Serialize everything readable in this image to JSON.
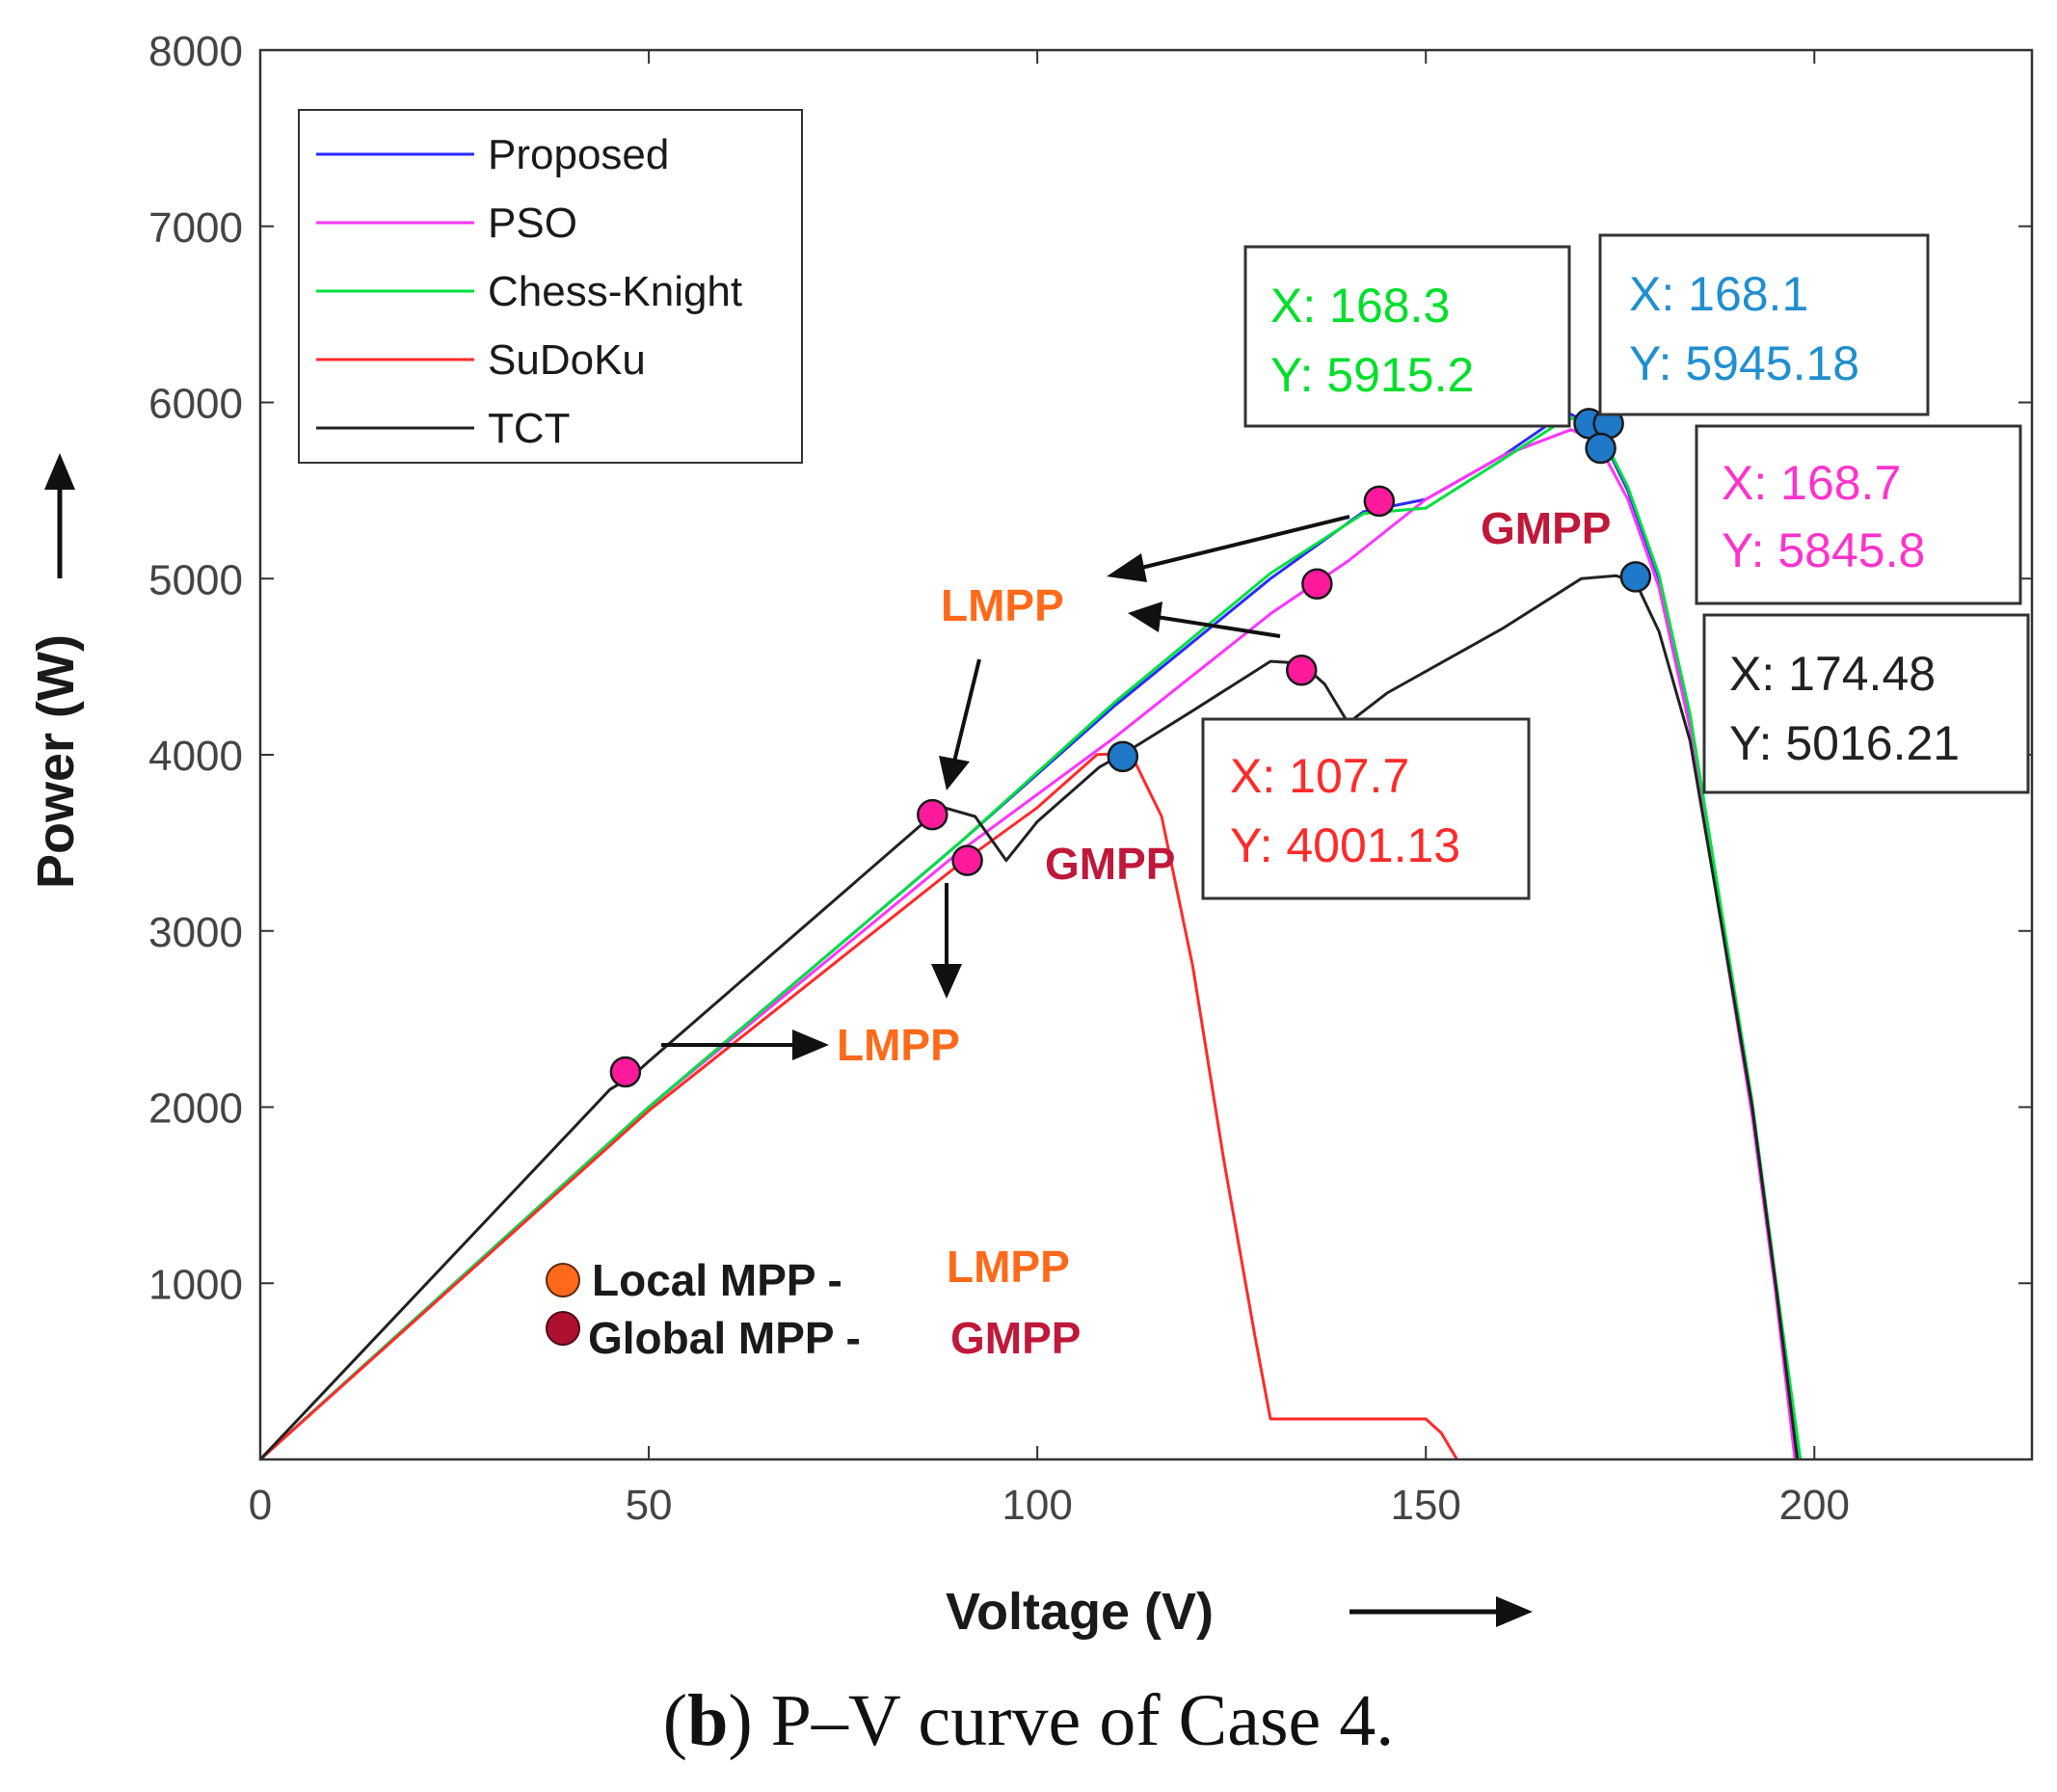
{
  "chart_data": {
    "type": "line",
    "title": "",
    "xlabel": "Voltage (V)",
    "ylabel": "Power (W)",
    "xlim": [
      0,
      228
    ],
    "ylim": [
      0,
      8000
    ],
    "xticks": [
      0,
      50,
      100,
      150,
      200
    ],
    "xtick_labels": [
      "0",
      "50",
      "100",
      "150",
      "200"
    ],
    "yticks": [
      1000,
      2000,
      3000,
      4000,
      5000,
      6000,
      7000,
      8000
    ],
    "ytick_labels": [
      "1000",
      "2000",
      "3000",
      "4000",
      "5000",
      "6000",
      "7000",
      "8000"
    ],
    "legend_position": "top-left",
    "series": [
      {
        "name": "Proposed",
        "color": "#2a2aff",
        "points": [
          [
            0,
            0
          ],
          [
            50,
            2000
          ],
          [
            90,
            3500
          ],
          [
            110,
            4280
          ],
          [
            130,
            5000
          ],
          [
            142,
            5380
          ],
          [
            150,
            5450
          ],
          [
            160,
            5700
          ],
          [
            168.1,
            5945.18
          ],
          [
            172,
            5860
          ],
          [
            176,
            5500
          ],
          [
            180,
            5000
          ],
          [
            184,
            4200
          ],
          [
            188,
            3100
          ],
          [
            192,
            2000
          ],
          [
            195,
            1000
          ],
          [
            198,
            0
          ]
        ]
      },
      {
        "name": "PSO",
        "color": "#ff33ff",
        "points": [
          [
            0,
            0
          ],
          [
            50,
            2000
          ],
          [
            90,
            3450
          ],
          [
            110,
            4100
          ],
          [
            130,
            4800
          ],
          [
            140,
            5100
          ],
          [
            150,
            5450
          ],
          [
            160,
            5700
          ],
          [
            168.7,
            5845.8
          ],
          [
            172,
            5780
          ],
          [
            176,
            5450
          ],
          [
            180,
            4950
          ],
          [
            184,
            4150
          ],
          [
            188,
            3050
          ],
          [
            192,
            1950
          ],
          [
            195,
            950
          ],
          [
            197.5,
            0
          ]
        ]
      },
      {
        "name": "Chess-Knight",
        "color": "#00e040",
        "points": [
          [
            0,
            0
          ],
          [
            50,
            2000
          ],
          [
            90,
            3500
          ],
          [
            110,
            4300
          ],
          [
            130,
            5030
          ],
          [
            142,
            5370
          ],
          [
            150,
            5400
          ],
          [
            160,
            5680
          ],
          [
            168.3,
            5915.2
          ],
          [
            172,
            5870
          ],
          [
            176,
            5520
          ],
          [
            180,
            5020
          ],
          [
            184,
            4230
          ],
          [
            188,
            3130
          ],
          [
            192,
            2030
          ],
          [
            195,
            1030
          ],
          [
            198.2,
            0
          ]
        ]
      },
      {
        "name": "SuDoKu",
        "color": "#ff2a2a",
        "points": [
          [
            0,
            0
          ],
          [
            50,
            1980
          ],
          [
            90,
            3380
          ],
          [
            100,
            3700
          ],
          [
            107.7,
            4001.13
          ],
          [
            112,
            4010
          ],
          [
            116,
            3650
          ],
          [
            120,
            2800
          ],
          [
            124,
            1700
          ],
          [
            128,
            700
          ],
          [
            130,
            230
          ],
          [
            140,
            230
          ],
          [
            150,
            230
          ],
          [
            152,
            150
          ],
          [
            154,
            0
          ]
        ]
      },
      {
        "name": "TCT",
        "color": "#222222",
        "points": [
          [
            0,
            0
          ],
          [
            45,
            2100
          ],
          [
            48,
            2180
          ],
          [
            50,
            2260
          ],
          [
            85,
            3600
          ],
          [
            88,
            3700
          ],
          [
            92,
            3650
          ],
          [
            96,
            3400
          ],
          [
            100,
            3620
          ],
          [
            108,
            3930
          ],
          [
            112,
            4030
          ],
          [
            120,
            4250
          ],
          [
            130,
            4530
          ],
          [
            134,
            4520
          ],
          [
            137,
            4400
          ],
          [
            140,
            4180
          ],
          [
            145,
            4350
          ],
          [
            160,
            4720
          ],
          [
            170,
            5000
          ],
          [
            174.48,
            5016.21
          ],
          [
            177,
            4980
          ],
          [
            180,
            4700
          ],
          [
            184,
            4080
          ],
          [
            188,
            3050
          ],
          [
            192,
            2000
          ],
          [
            195,
            1000
          ],
          [
            197.8,
            0
          ]
        ]
      }
    ],
    "markers": [
      {
        "label": "LMPP",
        "x": 47,
        "y": 2200,
        "color": "#ff1a9c"
      },
      {
        "label": "LMPP",
        "x": 86.5,
        "y": 3660,
        "color": "#ff1a9c"
      },
      {
        "label": "LMPP",
        "x": 91,
        "y": 3400,
        "color": "#ff1a9c"
      },
      {
        "label": "LMPP",
        "x": 134,
        "y": 4480,
        "color": "#ff1a9c"
      },
      {
        "label": "LMPP",
        "x": 136,
        "y": 4970,
        "color": "#ff1a9c"
      },
      {
        "label": "LMPP",
        "x": 144,
        "y": 5440,
        "color": "#ff1a9c"
      },
      {
        "label": "GMPP",
        "x": 111,
        "y": 3990,
        "color": "#1f78c8"
      },
      {
        "label": "GMPP",
        "x": 171,
        "y": 5880,
        "color": "#1f78c8"
      },
      {
        "label": "GMPP",
        "x": 173.5,
        "y": 5880,
        "color": "#1f78c8"
      },
      {
        "label": "GMPP",
        "x": 172.5,
        "y": 5740,
        "color": "#1f78c8"
      },
      {
        "label": "GMPP",
        "x": 177,
        "y": 5010,
        "color": "#1f78c8"
      }
    ],
    "annotations": {
      "mpp_labels": [
        {
          "text": "LMPP",
          "color": "#ff6a1a"
        },
        {
          "text": "LMPP",
          "color": "#ff6a1a"
        },
        {
          "text": "GMPP",
          "color": "#c0183a"
        },
        {
          "text": "GMPP",
          "color": "#c0183a"
        }
      ],
      "datatips": [
        {
          "x": "X: 168.3",
          "y": "Y: 5915.2",
          "color": "#00e02a"
        },
        {
          "x": "X: 168.1",
          "y": "Y: 5945.18",
          "color": "#1f8fd0"
        },
        {
          "x": "X: 168.7",
          "y": "Y: 5845.8",
          "color": "#ff33cc"
        },
        {
          "x": "X: 174.48",
          "y": "Y: 5016.21",
          "color": "#222222"
        },
        {
          "x": "X: 107.7",
          "y": "Y: 4001.13",
          "color": "#ff2a2a"
        }
      ]
    },
    "key": [
      {
        "text": "Local MPP -",
        "abbr": "LMPP",
        "dot_color": "#ff6a1a",
        "abbr_color": "#ff6a1a"
      },
      {
        "text": "Global MPP -",
        "abbr": "GMPP",
        "dot_color": "#b01030",
        "abbr_color": "#c0183a"
      }
    ]
  },
  "caption": {
    "bold": "b",
    "text": " P–V curve of Case 4."
  }
}
